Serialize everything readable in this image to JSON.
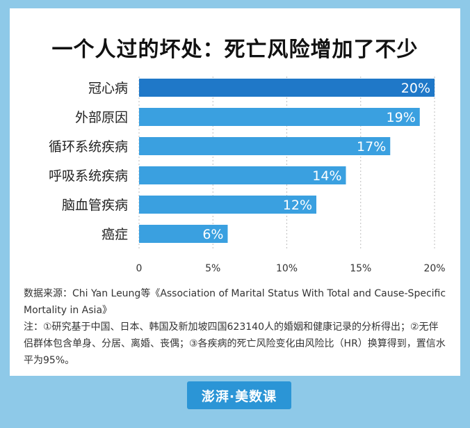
{
  "title": "一个人过的坏处：死亡风险增加了不少",
  "chart_data": {
    "type": "bar",
    "orientation": "horizontal",
    "categories": [
      "冠心病",
      "外部原因",
      "循环系统疾病",
      "呼吸系统疾病",
      "脑血管疾病",
      "癌症"
    ],
    "values": [
      20,
      19,
      17,
      14,
      12,
      6
    ],
    "value_labels": [
      "20%",
      "19%",
      "17%",
      "14%",
      "12%",
      "6%"
    ],
    "xlim": [
      0,
      20
    ],
    "xticks": [
      0,
      5,
      10,
      15,
      20
    ],
    "xtick_labels": [
      "0",
      "5%",
      "10%",
      "15%",
      "20%"
    ],
    "grid": true,
    "colors": {
      "highlight_bar": "#1f78c8",
      "bar": "#3aa0e0",
      "label": "#ffffff"
    }
  },
  "notes": {
    "source": "数据来源：Chi Yan Leung等《Association of Marital Status With Total and Cause-Specific Mortality in Asia》",
    "note": "注：①研究基于中国、日本、韩国及新加坡四国623140人的婚姻和健康记录的分析得出；②无伴侣群体包含单身、分居、离婚、丧偶；③各疾病的死亡风险变化由风险比（HR）换算得到，置信水平为95%。"
  },
  "footer": {
    "logo_text": "澎湃·美数课"
  }
}
